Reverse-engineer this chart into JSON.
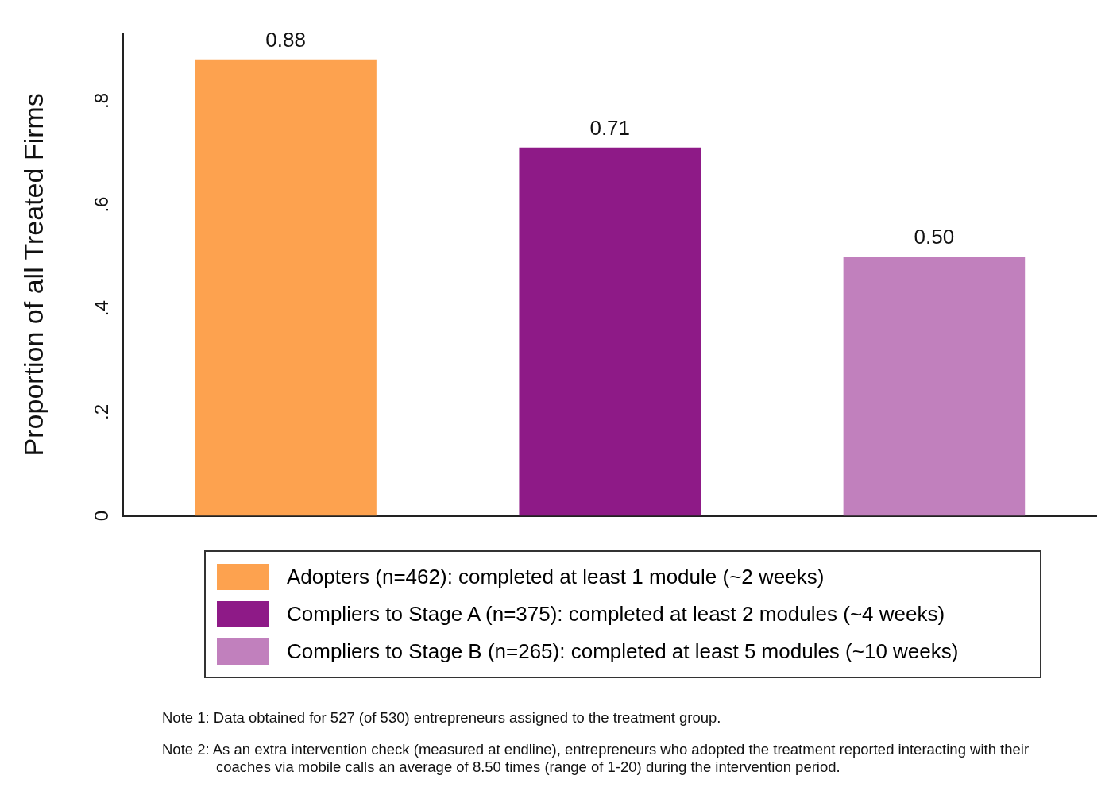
{
  "chart_data": {
    "type": "bar",
    "ylabel": "Proportion of all Treated Firms",
    "categories": [
      null,
      null,
      null
    ],
    "series": [
      {
        "name": "Adopters (n=462): completed at least 1 module (~2 weeks)",
        "color": "#fda24f",
        "values": [
          0.88,
          null,
          null
        ],
        "value_labels": [
          "0.88",
          null,
          null
        ]
      },
      {
        "name": "Compliers to Stage A (n=375): completed at least 2 modules (~4 weeks)",
        "color": "#8e1a87",
        "values": [
          null,
          0.71,
          null
        ],
        "value_labels": [
          null,
          "0.71",
          null
        ]
      },
      {
        "name": "Compliers to Stage B (n=265): completed at least 5 modules (~10 weeks)",
        "color": "#c180bd",
        "values": [
          null,
          null,
          0.5
        ],
        "value_labels": [
          null,
          null,
          "0.50"
        ]
      }
    ],
    "ylim": [
      0,
      0.93
    ],
    "yticks": [
      0,
      {
        "value": 0.2,
        "label": ".2"
      },
      {
        "value": 0.4,
        "label": ".4"
      },
      {
        "value": 0.6,
        "label": ".6"
      },
      {
        "value": 0.8,
        "label": ".8"
      }
    ],
    "grid": false,
    "legend": "bottom",
    "annotations": [
      "Note 1: Data obtained for 527 (of 530) entrepreneurs assigned to the treatment group.",
      "Note 2: As an extra intervention check (measured at endline), entrepreneurs who adopted the treatment reported interacting with their coaches via mobile calls an average of 8.50 times (range of 1-20) during the intervention period."
    ]
  }
}
